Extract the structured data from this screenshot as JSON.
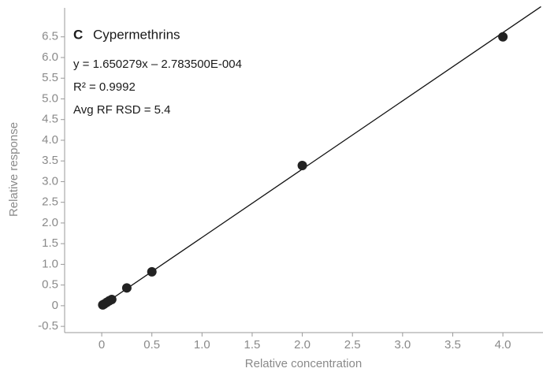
{
  "chart_data": {
    "type": "scatter",
    "annotations": {
      "panel": "C",
      "title": "Cypermethrins",
      "equation": "y = 1.650279x – 2.783500E-004",
      "r2": "R² = 0.9992",
      "rsd": "Avg RF RSD = 5.4"
    },
    "x_label": "Relative concentration",
    "y_label": "Relative response",
    "x": [
      0.01,
      0.025,
      0.05,
      0.075,
      0.1,
      0.25,
      0.5,
      2.0,
      4.0
    ],
    "values": [
      0.02,
      0.04,
      0.08,
      0.12,
      0.15,
      0.43,
      0.82,
      3.39,
      6.5
    ],
    "color": "#222222",
    "fit_line": {
      "color": "#111111",
      "x": [
        -0.01,
        4.38
      ],
      "values": [
        -0.017,
        7.23
      ]
    },
    "xlim": [
      -0.37,
      4.4
    ],
    "ylim": [
      -0.65,
      7.2
    ],
    "xticks": [
      0,
      0.5,
      {
        "value": 1,
        "label": "1.0"
      },
      1.5,
      {
        "value": 2,
        "label": "2.0"
      },
      2.5,
      {
        "value": 3,
        "label": "3.0"
      },
      3.5,
      {
        "value": 4,
        "label": "4.0"
      }
    ],
    "yticks": [
      -0.5,
      0,
      0.5,
      {
        "value": 1,
        "label": "1.0"
      },
      1.5,
      {
        "value": 2,
        "label": "2.0"
      },
      2.5,
      {
        "value": 3,
        "label": "3.0"
      },
      3.5,
      {
        "value": 4,
        "label": "4.0"
      },
      4.5,
      {
        "value": 5,
        "label": "5.0"
      },
      5.5,
      {
        "value": 6,
        "label": "6.0"
      },
      6.5
    ],
    "grid": false
  }
}
